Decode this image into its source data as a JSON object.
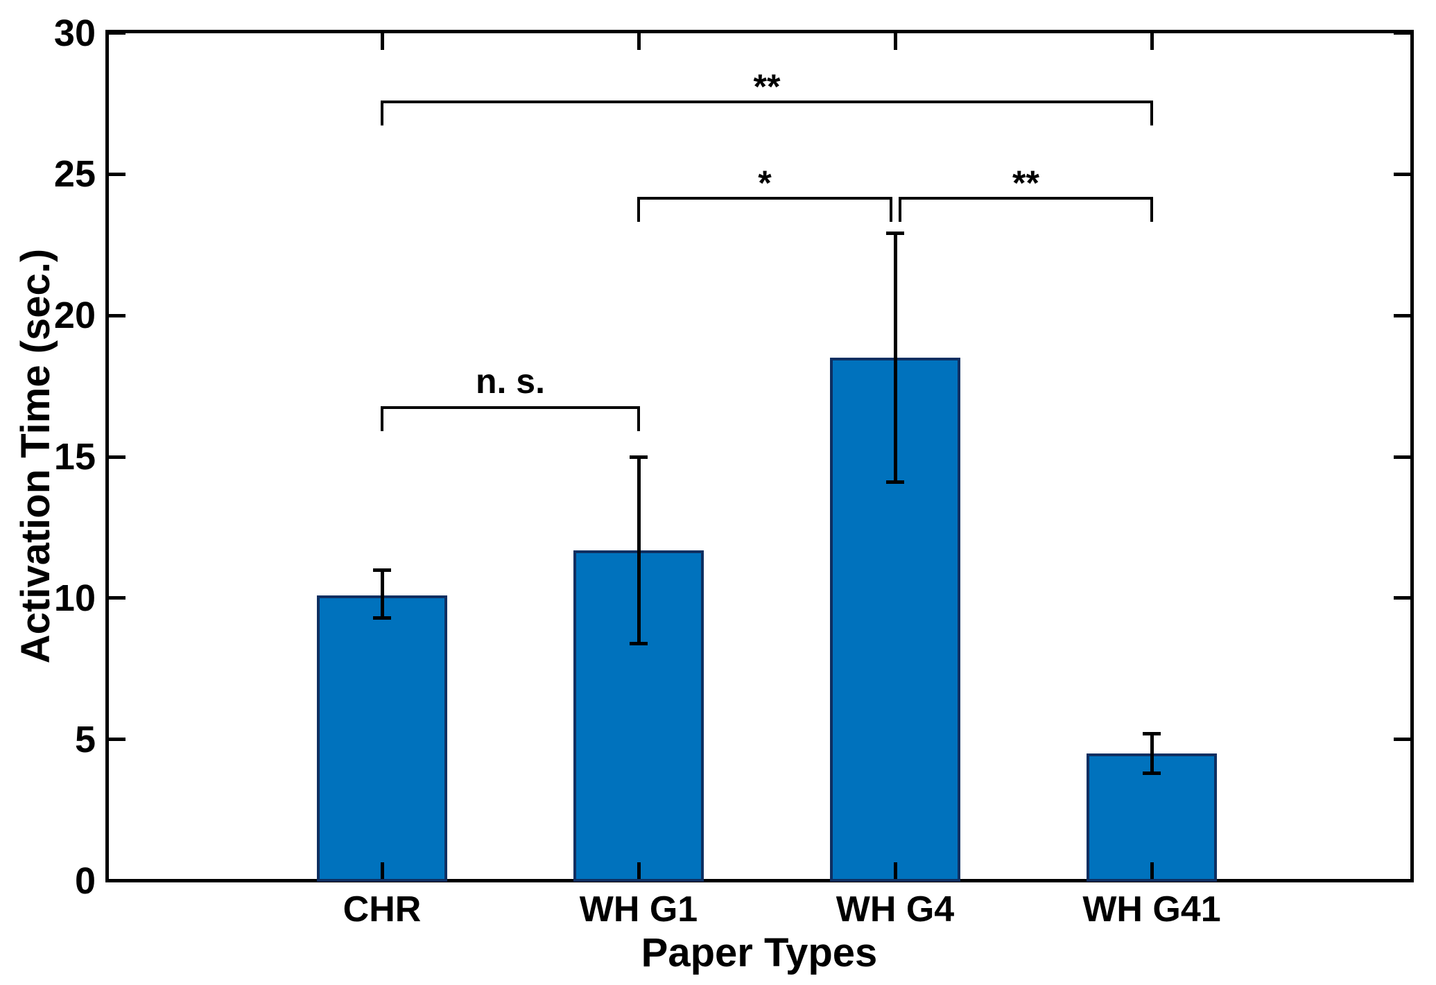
{
  "chart_data": {
    "type": "bar",
    "title": "",
    "xlabel": "Paper Types",
    "ylabel": "Activation Time (sec.)",
    "categories": [
      "CHR",
      "WH G1",
      "WH G4",
      "WH G41"
    ],
    "series": [
      {
        "name": "Activation Time",
        "values": [
          10.1,
          11.7,
          18.5,
          4.5
        ]
      }
    ],
    "error_bars": {
      "low": [
        9.3,
        8.4,
        14.1,
        3.8
      ],
      "high": [
        11.0,
        15.0,
        22.9,
        5.2
      ]
    },
    "ylim": [
      0,
      30
    ],
    "yticks": [
      0,
      5,
      10,
      15,
      20,
      25,
      30
    ],
    "ytick_labels": [
      "0",
      "5",
      "10",
      "15",
      "20",
      "25",
      "30"
    ],
    "grid": false,
    "legend": null,
    "bar_color": "#0072BD",
    "bar_edge_color": "#0e2f61",
    "error_bar_color": "#000000",
    "axis_color": "#000000",
    "significance_brackets": [
      {
        "label": "n. s.",
        "from": "CHR",
        "to": "WH G1",
        "height": 16.8
      },
      {
        "label": "*",
        "from": "WH G1",
        "to": "WH G4",
        "height": 24.2
      },
      {
        "label": "**",
        "from": "WH G4",
        "to": "WH G41",
        "height": 24.2
      },
      {
        "label": "**",
        "from": "CHR",
        "to": "WH G41",
        "height": 27.6
      }
    ]
  }
}
